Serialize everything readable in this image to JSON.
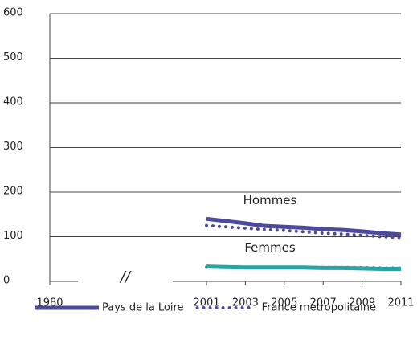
{
  "chart_data": {
    "type": "line",
    "x": [
      2001,
      2002,
      2003,
      2004,
      2005,
      2006,
      2007,
      2008,
      2009,
      2010,
      2011
    ],
    "xlim": [
      1980,
      2011
    ],
    "xticks": [
      1980,
      2001,
      2003,
      2005,
      2007,
      2009,
      2011
    ],
    "axis_break": true,
    "break_label": "//",
    "ylim": [
      0,
      600
    ],
    "yticks": [
      0,
      100,
      200,
      300,
      400,
      500,
      600
    ],
    "grid": true,
    "series": [
      {
        "name": "Pays de la Loire",
        "group": "Hommes",
        "color": "#4b4a9c",
        "style": "solid",
        "values": [
          140,
          135,
          130,
          124,
          122,
          120,
          117,
          115,
          112,
          108,
          105
        ]
      },
      {
        "name": "France métropolitaine",
        "group": "Hommes",
        "color": "#4b4a9c",
        "style": "dotted",
        "values": [
          125,
          122,
          119,
          116,
          114,
          111,
          108,
          106,
          103,
          100,
          98
        ]
      },
      {
        "name": "Pays de la Loire",
        "group": "Femmes",
        "color": "#2aa3a3",
        "style": "solid",
        "values": [
          33,
          32,
          31,
          31,
          31,
          31,
          30,
          30,
          29,
          28,
          28
        ]
      },
      {
        "name": "France métropolitaine",
        "group": "Femmes",
        "color": "#2aa3a3",
        "style": "dotted",
        "values": [
          32,
          31,
          31,
          31,
          31,
          31,
          31,
          31,
          31,
          30,
          30
        ]
      }
    ],
    "legend_position": "bottom"
  }
}
